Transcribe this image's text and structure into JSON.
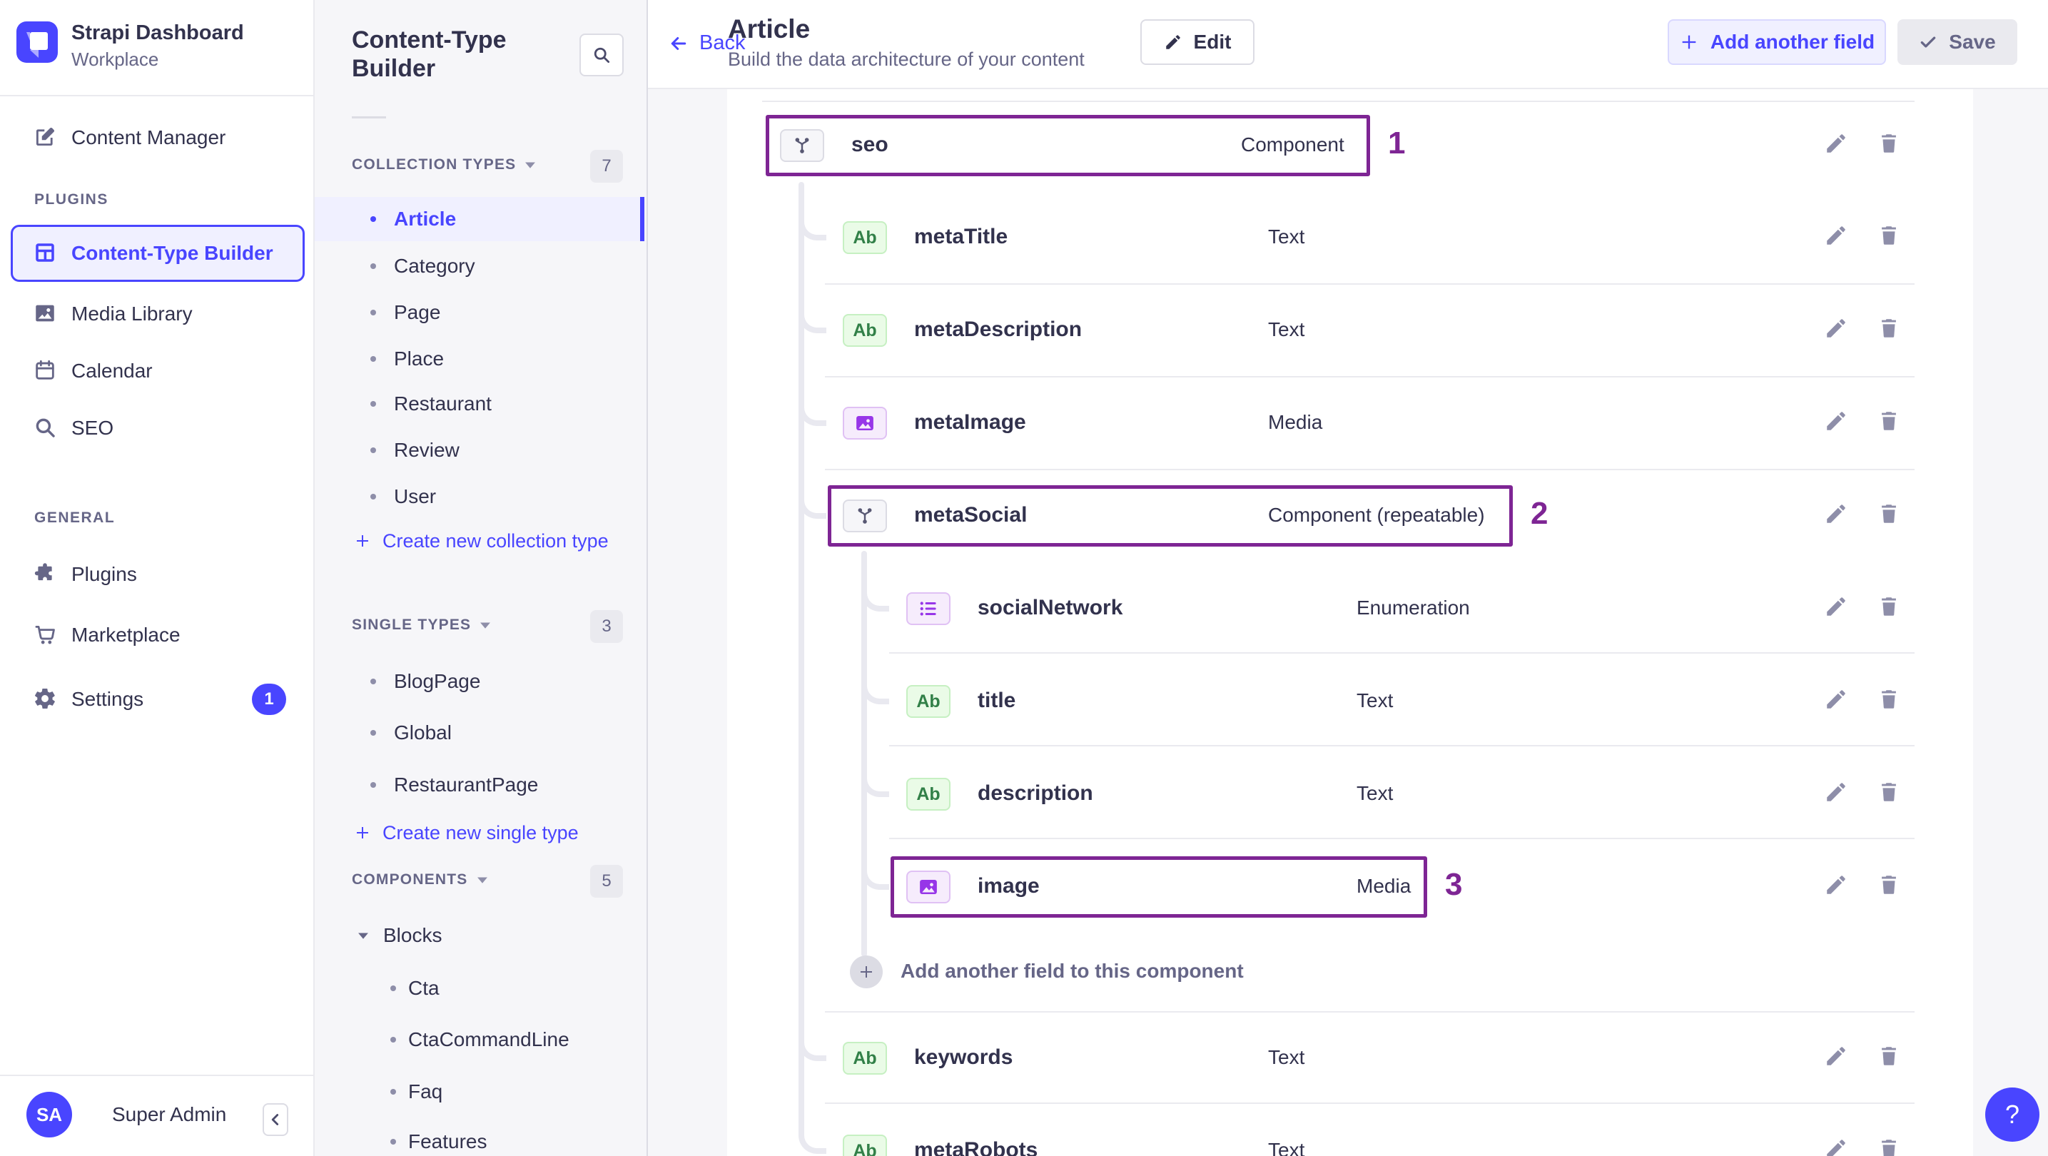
{
  "brand": {
    "title": "Strapi Dashboard",
    "subtitle": "Workplace"
  },
  "nav": {
    "content_manager": {
      "label": "Content Manager",
      "icon": "pen"
    },
    "sections": [
      {
        "label": "PLUGINS",
        "items": [
          {
            "label": "Content-Type Builder",
            "icon": "layout",
            "active": true
          },
          {
            "label": "Media Library",
            "icon": "image"
          },
          {
            "label": "Calendar",
            "icon": "calendar"
          },
          {
            "label": "SEO",
            "icon": "search"
          }
        ]
      },
      {
        "label": "GENERAL",
        "items": [
          {
            "label": "Plugins",
            "icon": "puzzle"
          },
          {
            "label": "Marketplace",
            "icon": "cart"
          },
          {
            "label": "Settings",
            "icon": "gear",
            "badge": "1"
          }
        ]
      }
    ],
    "user": {
      "initials": "SA",
      "name": "Super Admin"
    }
  },
  "subnav": {
    "title": "Content-Type Builder",
    "collection_types": {
      "label": "COLLECTION TYPES",
      "count": "7",
      "items": [
        "Article",
        "Category",
        "Page",
        "Place",
        "Restaurant",
        "Review",
        "User"
      ],
      "active": "Article",
      "action": "Create new collection type"
    },
    "single_types": {
      "label": "SINGLE TYPES",
      "count": "3",
      "items": [
        "BlogPage",
        "Global",
        "RestaurantPage"
      ],
      "action": "Create new single type"
    },
    "components": {
      "label": "COMPONENTS",
      "count": "5",
      "group": "Blocks",
      "items": [
        "Cta",
        "CtaCommandLine",
        "Faq",
        "Features"
      ]
    }
  },
  "header": {
    "back_label": "Back",
    "title": "Article",
    "subtitle": "Build the data architecture of your content",
    "edit_label": "Edit",
    "add_field_label": "Add another field",
    "save_label": "Save"
  },
  "fields": [
    {
      "name": "seo",
      "type": "Component",
      "icon": "component",
      "level": 0,
      "annotation": "1"
    },
    {
      "name": "metaTitle",
      "type": "Text",
      "icon": "text",
      "level": 1
    },
    {
      "name": "metaDescription",
      "type": "Text",
      "icon": "text",
      "level": 1
    },
    {
      "name": "metaImage",
      "type": "Media",
      "icon": "media",
      "level": 1
    },
    {
      "name": "metaSocial",
      "type": "Component (repeatable)",
      "icon": "component",
      "level": 1,
      "annotation": "2"
    },
    {
      "name": "socialNetwork",
      "type": "Enumeration",
      "icon": "enum",
      "level": 2
    },
    {
      "name": "title",
      "type": "Text",
      "icon": "text",
      "level": 2
    },
    {
      "name": "description",
      "type": "Text",
      "icon": "text",
      "level": 2
    },
    {
      "name": "image",
      "type": "Media",
      "icon": "media",
      "level": 2,
      "annotation": "3"
    },
    {
      "name": "keywords",
      "type": "Text",
      "icon": "text",
      "level": 1
    },
    {
      "name": "metaRobots",
      "type": "Text",
      "icon": "text",
      "level": 1
    }
  ],
  "add_field_row": {
    "label": "Add another field to this component"
  },
  "help_label": "?",
  "colors": {
    "primary": "#4945FF",
    "primary_light": "#F0F0FF",
    "annotation_purple": "#7E2594",
    "text_green": "#328048",
    "media_purple": "#9736E8",
    "page_bg": "#F6F6F9"
  }
}
